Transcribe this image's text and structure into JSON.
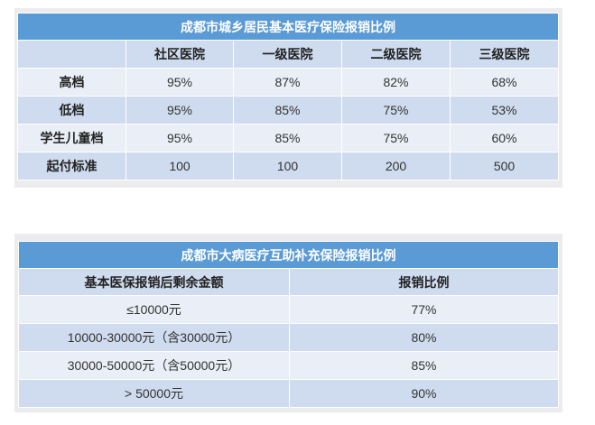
{
  "table1": {
    "title": "成都市城乡居民基本医疗保险报销比例",
    "columns": [
      "",
      "社区医院",
      "一级医院",
      "二级医院",
      "三级医院"
    ],
    "rows": [
      {
        "label": "高档",
        "values": [
          "95%",
          "87%",
          "82%",
          "68%"
        ]
      },
      {
        "label": "低档",
        "values": [
          "95%",
          "85%",
          "75%",
          "53%"
        ]
      },
      {
        "label": "学生儿童档",
        "values": [
          "95%",
          "85%",
          "75%",
          "60%"
        ]
      },
      {
        "label": "起付标准",
        "values": [
          "100",
          "100",
          "200",
          "500"
        ]
      }
    ]
  },
  "table2": {
    "title": "成都市大病医疗互助补充保险报销比例",
    "columns": [
      "基本医保报销后剩余金额",
      "报销比例"
    ],
    "rows": [
      {
        "label": "≤10000元",
        "value": "77%"
      },
      {
        "label": "10000-30000元（含30000元）",
        "value": "80%"
      },
      {
        "label": "30000-50000元（含50000元）",
        "value": "85%"
      },
      {
        "label": "> 50000元",
        "value": "90%"
      }
    ]
  },
  "colors": {
    "title_bar": "#5b9bd5",
    "row_dark": "#cfdbee",
    "row_light": "#e9eef7"
  }
}
